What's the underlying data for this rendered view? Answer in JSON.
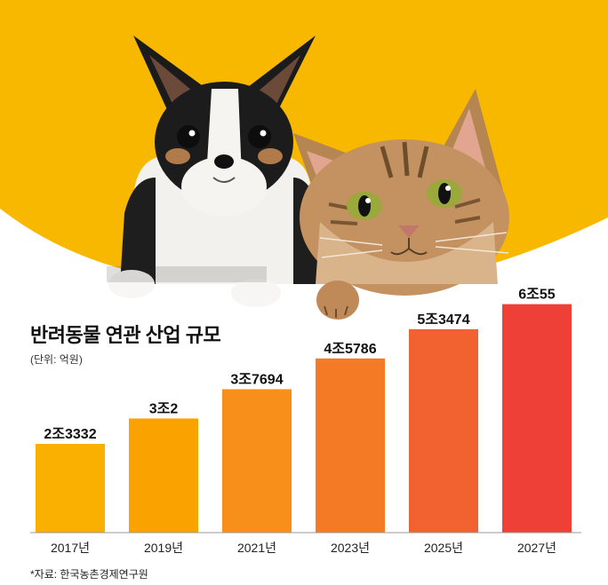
{
  "chart_data": {
    "type": "bar",
    "title": "반려동물 연관 산업 규모",
    "unit_note": "(단위: 억원)",
    "categories": [
      "2017년",
      "2019년",
      "2021년",
      "2023년",
      "2025년",
      "2027년"
    ],
    "values": [
      23332,
      30002,
      37694,
      45786,
      53474,
      60055
    ],
    "data_labels": [
      "2조3332",
      "3조2",
      "3조7694",
      "4조5786",
      "5조3474",
      "6조55"
    ],
    "ylim": [
      0,
      63000
    ],
    "grid": false,
    "legend": "none",
    "bar_colors": [
      "#F9B000",
      "#F9A200",
      "#F78F1A",
      "#F47A25",
      "#F26230",
      "#EE4037"
    ]
  },
  "source": "*자료: 한국농촌경제연구원",
  "colors": {
    "background_band": "#F9B800",
    "axis": "#999999"
  },
  "illustration": {
    "subjects": [
      "dog-illustration",
      "cat-illustration"
    ]
  }
}
